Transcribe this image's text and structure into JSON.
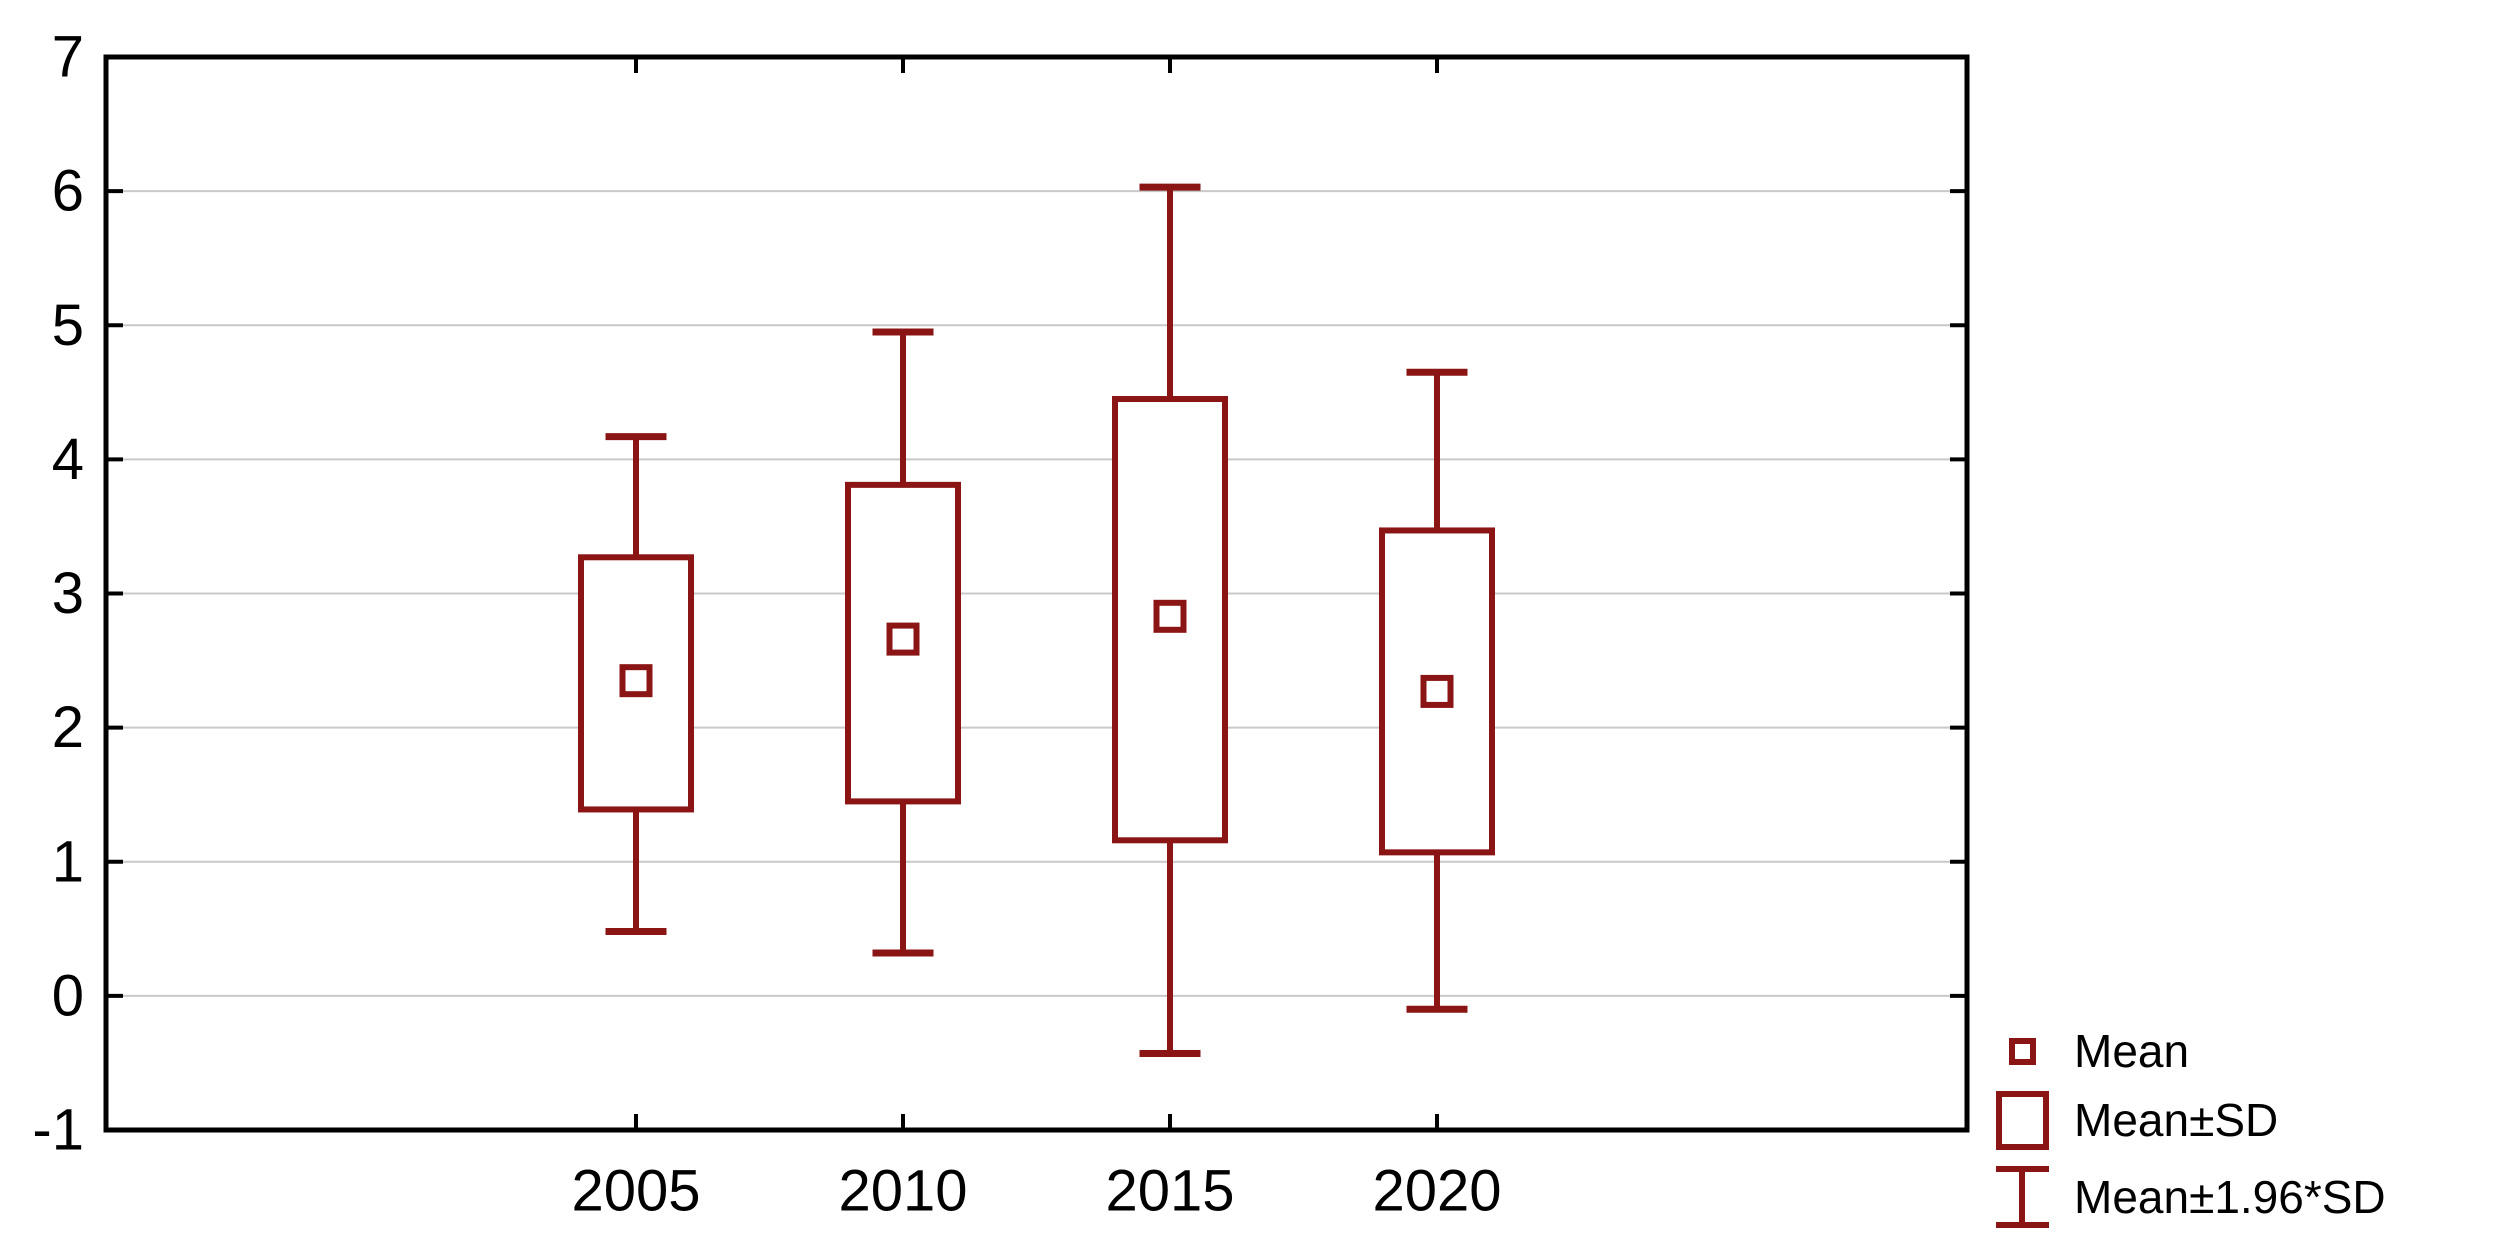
{
  "chart_data": {
    "type": "box",
    "title": "",
    "xlabel": "",
    "ylabel": "",
    "categories": [
      "2005",
      "2010",
      "2015",
      "2020"
    ],
    "series": [
      {
        "category": "2005",
        "mean": 2.35,
        "mean_minus_sd": 1.39,
        "mean_plus_sd": 3.27,
        "mean_minus_196sd": 0.48,
        "mean_plus_196sd": 4.17
      },
      {
        "category": "2010",
        "mean": 2.66,
        "mean_minus_sd": 1.45,
        "mean_plus_sd": 3.81,
        "mean_minus_196sd": 0.32,
        "mean_plus_196sd": 4.95
      },
      {
        "category": "2015",
        "mean": 2.83,
        "mean_minus_sd": 1.16,
        "mean_plus_sd": 4.45,
        "mean_minus_196sd": -0.43,
        "mean_plus_196sd": 6.03
      },
      {
        "category": "2020",
        "mean": 2.27,
        "mean_minus_sd": 1.07,
        "mean_plus_sd": 3.47,
        "mean_minus_196sd": -0.1,
        "mean_plus_196sd": 4.65
      }
    ],
    "ylim": [
      -1,
      7
    ],
    "yticks": [
      7,
      6,
      5,
      4,
      3,
      2,
      1,
      0,
      -1
    ],
    "grid": true,
    "legend": {
      "position": "bottom-right",
      "entries": [
        {
          "marker": "mean-square",
          "label": "Mean"
        },
        {
          "marker": "sd-box",
          "label": "Mean±SD"
        },
        {
          "marker": "whisker-ibeam",
          "label": "Mean±1.96*SD"
        }
      ]
    },
    "colors": {
      "series": "#8B1414",
      "grid": "#C9C9C9",
      "axis": "#000000",
      "background": "#FFFFFF"
    }
  }
}
